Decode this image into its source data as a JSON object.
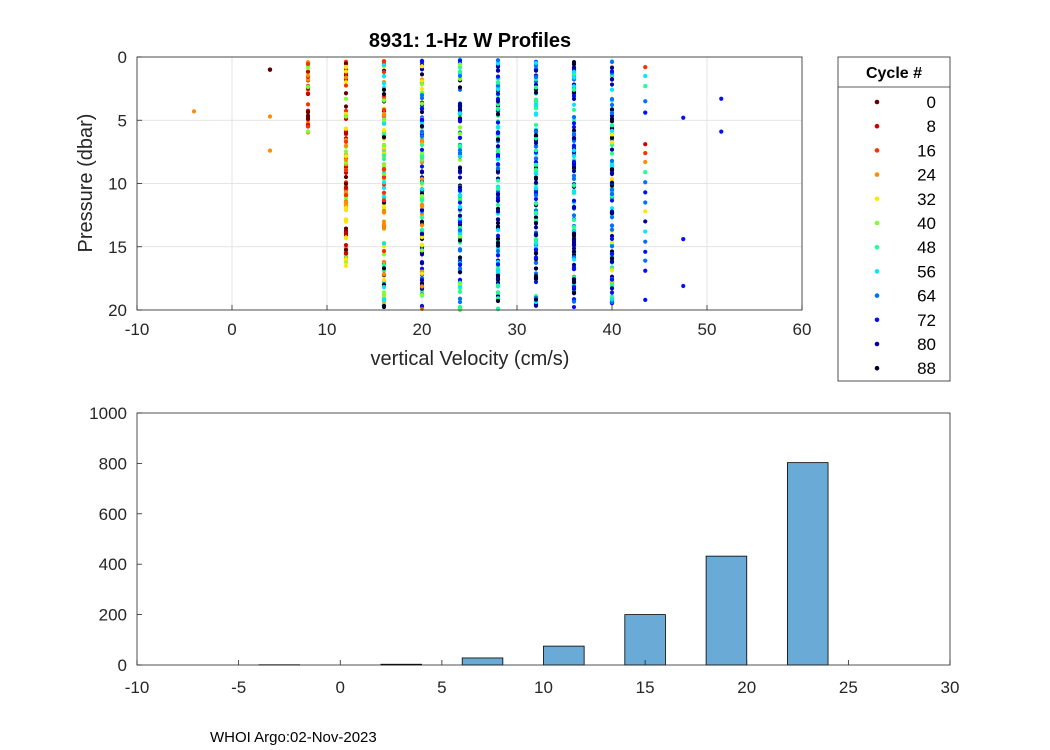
{
  "footer": "WHOI Argo:02-Nov-2023",
  "chart_data": [
    {
      "type": "scatter",
      "title": "8931: 1-Hz W Profiles",
      "xlabel": "vertical Velocity (cm/s)",
      "ylabel": "Pressure (dbar)",
      "xlim": [
        -10,
        60
      ],
      "ylim": [
        0,
        20
      ],
      "y_reversed": true,
      "grid": true,
      "xticks": [
        -10,
        0,
        10,
        20,
        30,
        40,
        50,
        60
      ],
      "yticks": [
        0,
        5,
        10,
        15,
        20
      ],
      "legend": {
        "title": "Cycle #",
        "placement": "outside-right",
        "entries": [
          {
            "label": "0",
            "color": "#600000"
          },
          {
            "label": "8",
            "color": "#d00000"
          },
          {
            "label": "16",
            "color": "#ff3000"
          },
          {
            "label": "24",
            "color": "#ff8c00"
          },
          {
            "label": "32",
            "color": "#ffe800"
          },
          {
            "label": "40",
            "color": "#80ff30"
          },
          {
            "label": "48",
            "color": "#20ff90"
          },
          {
            "label": "56",
            "color": "#00e8ff"
          },
          {
            "label": "64",
            "color": "#0070ff"
          },
          {
            "label": "72",
            "color": "#0010ff"
          },
          {
            "label": "80",
            "color": "#0000a0"
          },
          {
            "label": "88",
            "color": "#000030"
          }
        ]
      },
      "columns": [
        {
          "x": 4,
          "ymin": 1.0,
          "ymax": 1.0,
          "cycles": [
            0
          ]
        },
        {
          "x": 8,
          "ymin": 0.4,
          "ymax": 6.0,
          "cycles": [
            0,
            8,
            16,
            24,
            40
          ]
        },
        {
          "x": 12,
          "ymin": 0.3,
          "ymax": 16.7,
          "cycles": [
            0,
            8,
            16,
            24,
            32,
            40
          ]
        },
        {
          "x": 16,
          "ymin": 0.2,
          "ymax": 20.0,
          "cycles": [
            16,
            24,
            32,
            40,
            48,
            56,
            88
          ]
        },
        {
          "x": 20,
          "ymin": 0.2,
          "ymax": 20.0,
          "cycles": [
            24,
            32,
            40,
            48,
            56,
            64,
            72,
            80,
            88
          ]
        },
        {
          "x": 24,
          "ymin": 0.2,
          "ymax": 20.0,
          "cycles": [
            40,
            48,
            56,
            64,
            72,
            80,
            88
          ]
        },
        {
          "x": 28,
          "ymin": 0.2,
          "ymax": 20.0,
          "cycles": [
            48,
            56,
            64,
            72,
            80,
            88
          ]
        },
        {
          "x": 32,
          "ymin": 0.2,
          "ymax": 20.0,
          "cycles": [
            48,
            56,
            64,
            72,
            80,
            88
          ]
        },
        {
          "x": 36,
          "ymin": 0.2,
          "ymax": 20.0,
          "cycles": [
            48,
            56,
            64,
            72,
            80,
            88
          ]
        },
        {
          "x": 40,
          "ymin": 0.2,
          "ymax": 19.6,
          "cycles": [
            32,
            48,
            56,
            64,
            72,
            80,
            88
          ]
        }
      ],
      "points": [
        {
          "x": -4,
          "y": 4.3,
          "cycle": 24
        },
        {
          "x": 4,
          "y": 4.7,
          "cycle": 24
        },
        {
          "x": 4,
          "y": 7.4,
          "cycle": 24
        },
        {
          "x": 43.5,
          "y": 0.8,
          "cycle": 16
        },
        {
          "x": 43.5,
          "y": 1.5,
          "cycle": 56
        },
        {
          "x": 43.5,
          "y": 2.3,
          "cycle": 48
        },
        {
          "x": 43.5,
          "y": 3.5,
          "cycle": 64
        },
        {
          "x": 43.5,
          "y": 4.4,
          "cycle": 72
        },
        {
          "x": 43.5,
          "y": 6.9,
          "cycle": 8
        },
        {
          "x": 43.5,
          "y": 7.6,
          "cycle": 16
        },
        {
          "x": 43.5,
          "y": 8.3,
          "cycle": 24
        },
        {
          "x": 43.5,
          "y": 9.1,
          "cycle": 48
        },
        {
          "x": 43.5,
          "y": 9.9,
          "cycle": 64
        },
        {
          "x": 43.5,
          "y": 10.7,
          "cycle": 72
        },
        {
          "x": 43.5,
          "y": 11.5,
          "cycle": 64
        },
        {
          "x": 43.5,
          "y": 12.2,
          "cycle": 32
        },
        {
          "x": 43.5,
          "y": 13.0,
          "cycle": 80
        },
        {
          "x": 43.5,
          "y": 13.8,
          "cycle": 56
        },
        {
          "x": 43.5,
          "y": 14.6,
          "cycle": 64
        },
        {
          "x": 43.5,
          "y": 15.4,
          "cycle": 72
        },
        {
          "x": 43.5,
          "y": 16.1,
          "cycle": 64
        },
        {
          "x": 43.5,
          "y": 16.9,
          "cycle": 72
        },
        {
          "x": 43.5,
          "y": 19.2,
          "cycle": 72
        },
        {
          "x": 47.5,
          "y": 4.8,
          "cycle": 72
        },
        {
          "x": 47.5,
          "y": 14.4,
          "cycle": 72
        },
        {
          "x": 47.5,
          "y": 18.1,
          "cycle": 72
        },
        {
          "x": 51.5,
          "y": 3.3,
          "cycle": 72
        },
        {
          "x": 51.5,
          "y": 5.9,
          "cycle": 72
        }
      ]
    },
    {
      "type": "bar",
      "title": "",
      "xlabel": "",
      "ylabel": "",
      "xlim": [
        -10,
        30
      ],
      "ylim": [
        0,
        1000
      ],
      "grid": false,
      "xticks": [
        -10,
        -5,
        0,
        5,
        10,
        15,
        20,
        25,
        30
      ],
      "yticks": [
        0,
        200,
        400,
        600,
        800,
        1000
      ],
      "bar_color": "#6aaad6",
      "bins": [
        {
          "left": -8,
          "right": -6,
          "value": 0
        },
        {
          "left": -4,
          "right": -2,
          "value": 1
        },
        {
          "left": 0,
          "right": 2,
          "value": 0
        },
        {
          "left": 2,
          "right": 4,
          "value": 3
        },
        {
          "left": 6,
          "right": 8,
          "value": 28
        },
        {
          "left": 10,
          "right": 12,
          "value": 75
        },
        {
          "left": 14,
          "right": 16,
          "value": 200
        },
        {
          "left": 18,
          "right": 20,
          "value": 432
        },
        {
          "left": 22,
          "right": 24,
          "value": 803
        },
        {
          "left": 26,
          "right": 28,
          "value": 0
        }
      ]
    }
  ]
}
